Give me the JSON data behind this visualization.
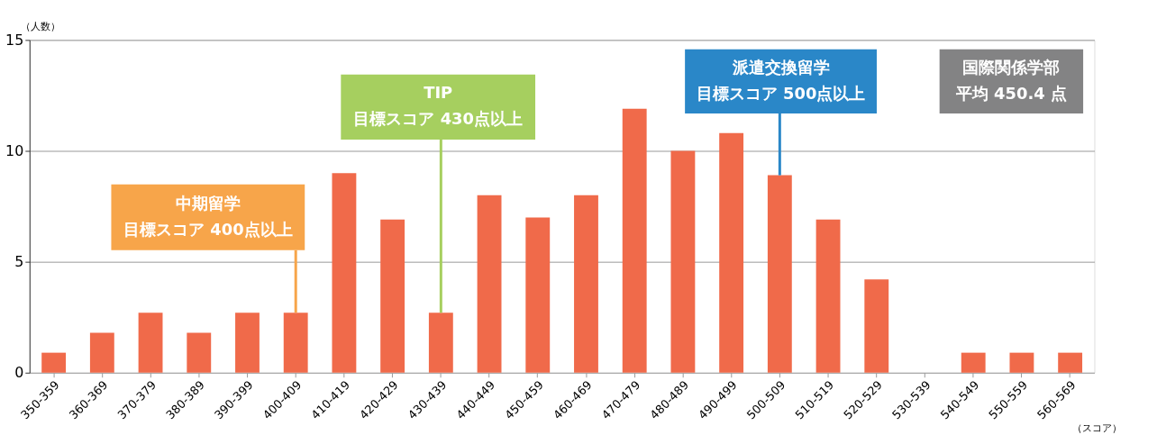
{
  "chart_data": {
    "type": "bar",
    "xlabel": "（スコア）",
    "ylabel": "（人数）",
    "categories": [
      "350-359",
      "360-369",
      "370-379",
      "380-389",
      "390-399",
      "400-409",
      "410-419",
      "420-429",
      "430-439",
      "440-449",
      "450-459",
      "460-469",
      "470-479",
      "480-489",
      "490-499",
      "500-509",
      "510-519",
      "520-529",
      "530-539",
      "540-549",
      "550-559",
      "560-569"
    ],
    "values": [
      0.9,
      1.8,
      2.7,
      1.8,
      2.7,
      2.7,
      9,
      6.9,
      2.7,
      8,
      7,
      8,
      11.9,
      10,
      10.8,
      8.9,
      6.9,
      4.2,
      0,
      0.9,
      0.9,
      0.9
    ],
    "color": "#f06a4a",
    "ylim": [
      0,
      15
    ],
    "yticks": [
      0,
      5,
      10,
      15
    ],
    "grid": "y",
    "annotations": [
      "中期留学",
      {
        "text": "目標スコア 400点以上",
        "x": "400-409",
        "y": 2.7
      },
      "TIP",
      {
        "text": "目標スコア 430点以上",
        "x": "430-439",
        "y": 2.7
      },
      "派遣交換留学",
      {
        "text": "目標スコア 500点以上",
        "x": "500-509",
        "y": 8.9
      },
      "国際関係学部",
      "平均 450.4 点"
    ]
  }
}
